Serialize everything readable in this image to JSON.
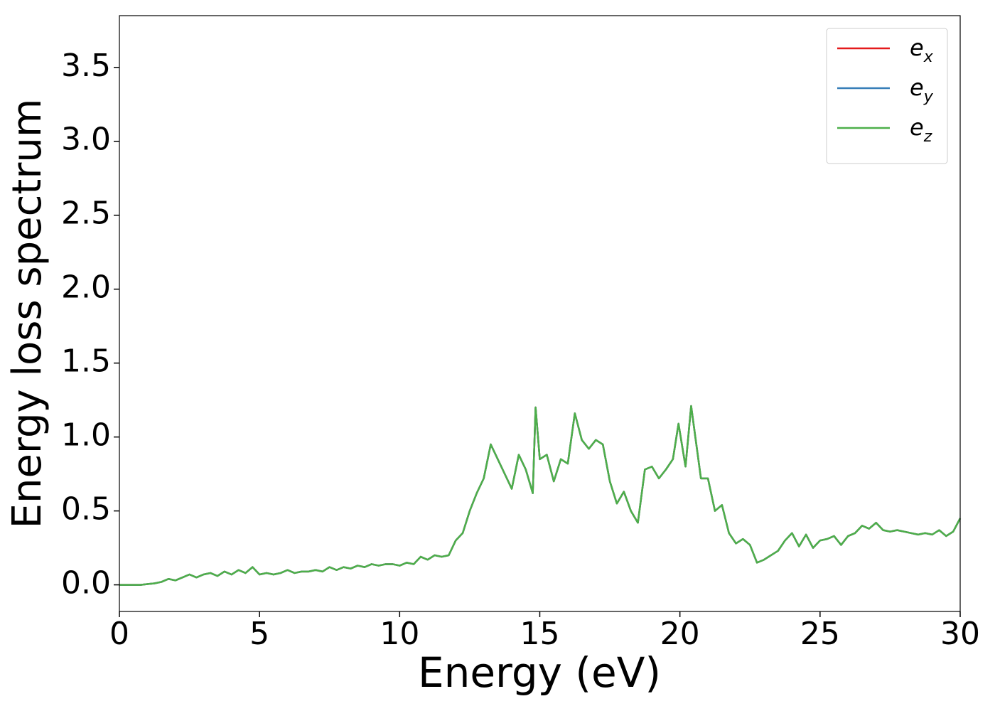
{
  "chart_data": {
    "type": "line",
    "xlabel": "Energy (eV)",
    "ylabel": "Energy loss spectrum",
    "xlim": [
      0,
      30
    ],
    "ylim": [
      -0.18,
      3.85
    ],
    "xticks": [
      0,
      5,
      10,
      15,
      20,
      25,
      30
    ],
    "yticks": [
      {
        "value": 0,
        "label": "0.0"
      },
      0.5,
      {
        "value": 1,
        "label": "1.0"
      },
      1.5,
      {
        "value": 2,
        "label": "2.0"
      },
      2.5,
      {
        "value": 3,
        "label": "3.0"
      },
      3.5
    ],
    "legend": "upper right",
    "grid": false,
    "x": [
      0,
      0.25,
      0.5,
      0.75,
      1,
      1.25,
      1.5,
      1.75,
      2,
      2.25,
      2.5,
      2.75,
      3,
      3.25,
      3.5,
      3.75,
      4,
      4.25,
      4.5,
      4.75,
      5,
      5.25,
      5.5,
      5.75,
      6,
      6.25,
      6.5,
      6.75,
      7,
      7.25,
      7.5,
      7.75,
      8,
      8.25,
      8.5,
      8.75,
      9,
      9.25,
      9.5,
      9.75,
      10,
      10.25,
      10.5,
      10.75,
      11,
      11.25,
      11.5,
      11.75,
      12,
      12.25,
      12.5,
      12.75,
      13,
      13.25,
      13.5,
      13.75,
      14,
      14.25,
      14.5,
      14.75,
      14.85,
      15,
      15.25,
      15.5,
      15.75,
      16,
      16.25,
      16.5,
      16.75,
      17,
      17.25,
      17.5,
      17.75,
      18,
      18.25,
      18.5,
      18.75,
      19,
      19.25,
      19.5,
      19.75,
      19.95,
      20.2,
      20.4,
      20.75,
      21,
      21.25,
      21.5,
      21.75,
      22,
      22.25,
      22.5,
      22.75,
      23,
      23.25,
      23.5,
      23.75,
      24,
      24.25,
      24.5,
      24.75,
      25,
      25.25,
      25.5,
      25.75,
      26,
      26.25,
      26.5,
      26.75,
      27,
      27.25,
      27.5,
      27.75,
      28,
      28.25,
      28.5,
      28.75,
      29,
      29.25,
      29.5,
      29.75,
      30
    ],
    "series": [
      {
        "name": "ex",
        "color": "#e41a1c",
        "values": [
          0,
          0,
          0,
          0,
          0.005,
          0.01,
          0.02,
          0.04,
          0.03,
          0.05,
          0.07,
          0.05,
          0.07,
          0.08,
          0.06,
          0.09,
          0.07,
          0.1,
          0.08,
          0.12,
          0.07,
          0.08,
          0.07,
          0.08,
          0.1,
          0.08,
          0.09,
          0.09,
          0.1,
          0.09,
          0.12,
          0.1,
          0.12,
          0.11,
          0.13,
          0.12,
          0.14,
          0.13,
          0.14,
          0.14,
          0.13,
          0.15,
          0.14,
          0.19,
          0.17,
          0.2,
          0.19,
          0.2,
          0.3,
          0.35,
          0.5,
          0.62,
          0.72,
          0.95,
          0.85,
          0.75,
          0.65,
          0.88,
          0.78,
          0.62,
          1.2,
          0.85,
          0.88,
          0.7,
          0.85,
          0.82,
          1.16,
          0.98,
          0.92,
          0.98,
          0.95,
          0.7,
          0.55,
          0.63,
          0.5,
          0.42,
          0.78,
          0.8,
          0.72,
          0.78,
          0.85,
          1.09,
          0.8,
          1.21,
          0.72,
          0.72,
          0.5,
          0.54,
          0.35,
          0.28,
          0.31,
          0.27,
          0.15,
          0.17,
          0.2,
          0.23,
          0.3,
          0.35,
          0.26,
          0.34,
          0.25,
          0.3,
          0.31,
          0.33,
          0.27,
          0.33,
          0.35,
          0.4,
          0.38,
          0.42,
          0.37,
          0.36,
          0.37,
          0.36,
          0.35,
          0.34,
          0.35,
          0.34,
          0.37,
          0.33,
          0.36,
          0.45
        ]
      },
      {
        "name": "ey",
        "color": "#377eb8",
        "values": [
          0,
          0,
          0,
          0,
          0.005,
          0.01,
          0.02,
          0.04,
          0.03,
          0.05,
          0.07,
          0.05,
          0.07,
          0.08,
          0.06,
          0.09,
          0.07,
          0.1,
          0.08,
          0.12,
          0.07,
          0.08,
          0.07,
          0.08,
          0.1,
          0.08,
          0.09,
          0.09,
          0.1,
          0.09,
          0.12,
          0.1,
          0.12,
          0.11,
          0.13,
          0.12,
          0.14,
          0.13,
          0.14,
          0.14,
          0.13,
          0.15,
          0.14,
          0.19,
          0.17,
          0.2,
          0.19,
          0.2,
          0.3,
          0.35,
          0.5,
          0.62,
          0.72,
          0.95,
          0.85,
          0.75,
          0.65,
          0.88,
          0.78,
          0.62,
          1.2,
          0.85,
          0.88,
          0.7,
          0.85,
          0.82,
          1.16,
          0.98,
          0.92,
          0.98,
          0.95,
          0.7,
          0.55,
          0.63,
          0.5,
          0.42,
          0.78,
          0.8,
          0.72,
          0.78,
          0.85,
          1.09,
          0.8,
          1.21,
          0.72,
          0.72,
          0.5,
          0.54,
          0.35,
          0.28,
          0.31,
          0.27,
          0.15,
          0.17,
          0.2,
          0.23,
          0.3,
          0.35,
          0.26,
          0.34,
          0.25,
          0.3,
          0.31,
          0.33,
          0.27,
          0.33,
          0.35,
          0.4,
          0.38,
          0.42,
          0.37,
          0.36,
          0.37,
          0.36,
          0.35,
          0.34,
          0.35,
          0.34,
          0.37,
          0.33,
          0.36,
          0.45
        ]
      },
      {
        "name": "ez",
        "color": "#4daf4a",
        "values": [
          0,
          0,
          0,
          0,
          0.005,
          0.01,
          0.02,
          0.04,
          0.03,
          0.05,
          0.07,
          0.05,
          0.07,
          0.08,
          0.06,
          0.09,
          0.07,
          0.1,
          0.08,
          0.12,
          0.07,
          0.08,
          0.07,
          0.08,
          0.1,
          0.08,
          0.09,
          0.09,
          0.1,
          0.09,
          0.12,
          0.1,
          0.12,
          0.11,
          0.13,
          0.12,
          0.14,
          0.13,
          0.14,
          0.14,
          0.13,
          0.15,
          0.14,
          0.19,
          0.17,
          0.2,
          0.19,
          0.2,
          0.3,
          0.35,
          0.5,
          0.62,
          0.72,
          0.95,
          0.85,
          0.75,
          0.65,
          0.88,
          0.78,
          0.62,
          1.2,
          0.85,
          0.88,
          0.7,
          0.85,
          0.82,
          1.16,
          0.98,
          0.92,
          0.98,
          0.95,
          0.7,
          0.55,
          0.63,
          0.5,
          0.42,
          0.78,
          0.8,
          0.72,
          0.78,
          0.85,
          1.09,
          0.8,
          1.21,
          0.72,
          0.72,
          0.5,
          0.54,
          0.35,
          0.28,
          0.31,
          0.27,
          0.15,
          0.17,
          0.2,
          0.23,
          0.3,
          0.35,
          0.26,
          0.34,
          0.25,
          0.3,
          0.31,
          0.33,
          0.27,
          0.33,
          0.35,
          0.4,
          0.38,
          0.42,
          0.37,
          0.36,
          0.37,
          0.36,
          0.35,
          0.34,
          0.35,
          0.34,
          0.37,
          0.33,
          0.36,
          0.45
        ]
      }
    ]
  }
}
